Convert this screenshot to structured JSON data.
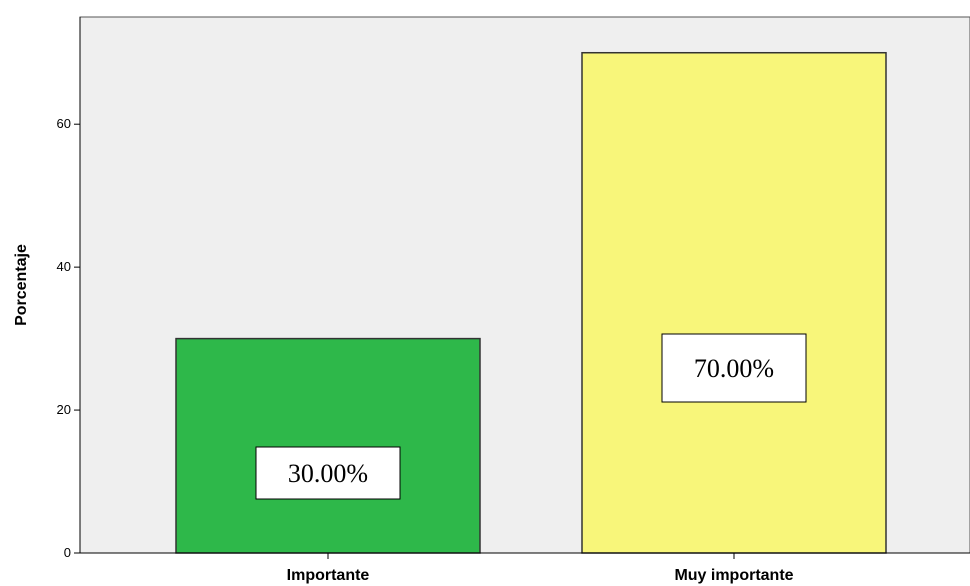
{
  "chart_data": {
    "type": "bar",
    "categories": [
      "Importante",
      "Muy importante"
    ],
    "values": [
      30,
      70
    ],
    "data_labels": [
      "30.00%",
      "70.00%"
    ],
    "colors": [
      "#2eb84a",
      "#f8f67a"
    ],
    "title": "",
    "xlabel": "",
    "ylabel": "Porcentaje",
    "ylim": [
      0,
      75
    ],
    "yticks": [
      0,
      20,
      40,
      60
    ],
    "grid": false,
    "plot_background": "#efefef"
  }
}
